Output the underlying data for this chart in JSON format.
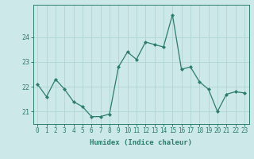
{
  "x": [
    0,
    1,
    2,
    3,
    4,
    5,
    6,
    7,
    8,
    9,
    10,
    11,
    12,
    13,
    14,
    15,
    16,
    17,
    18,
    19,
    20,
    21,
    22,
    23
  ],
  "y": [
    22.1,
    21.6,
    22.3,
    21.9,
    21.4,
    21.2,
    20.8,
    20.8,
    20.9,
    22.8,
    23.4,
    23.1,
    23.8,
    23.7,
    23.6,
    24.9,
    22.7,
    22.8,
    22.2,
    21.9,
    21.0,
    21.7,
    21.8,
    21.75
  ],
  "line_color": "#2d7d6e",
  "marker": "D",
  "marker_size": 2.0,
  "bg_color": "#cce8e8",
  "grid_color": "#b0d4d4",
  "axis_color": "#2d7d6e",
  "xlabel": "Humidex (Indice chaleur)",
  "ylim": [
    20.5,
    25.3
  ],
  "yticks": [
    21,
    22,
    23,
    24
  ],
  "xticks": [
    0,
    1,
    2,
    3,
    4,
    5,
    6,
    7,
    8,
    9,
    10,
    11,
    12,
    13,
    14,
    15,
    16,
    17,
    18,
    19,
    20,
    21,
    22,
    23
  ],
  "font_color": "#2d7d6e",
  "tick_fontsize": 5.5,
  "xlabel_fontsize": 6.5
}
